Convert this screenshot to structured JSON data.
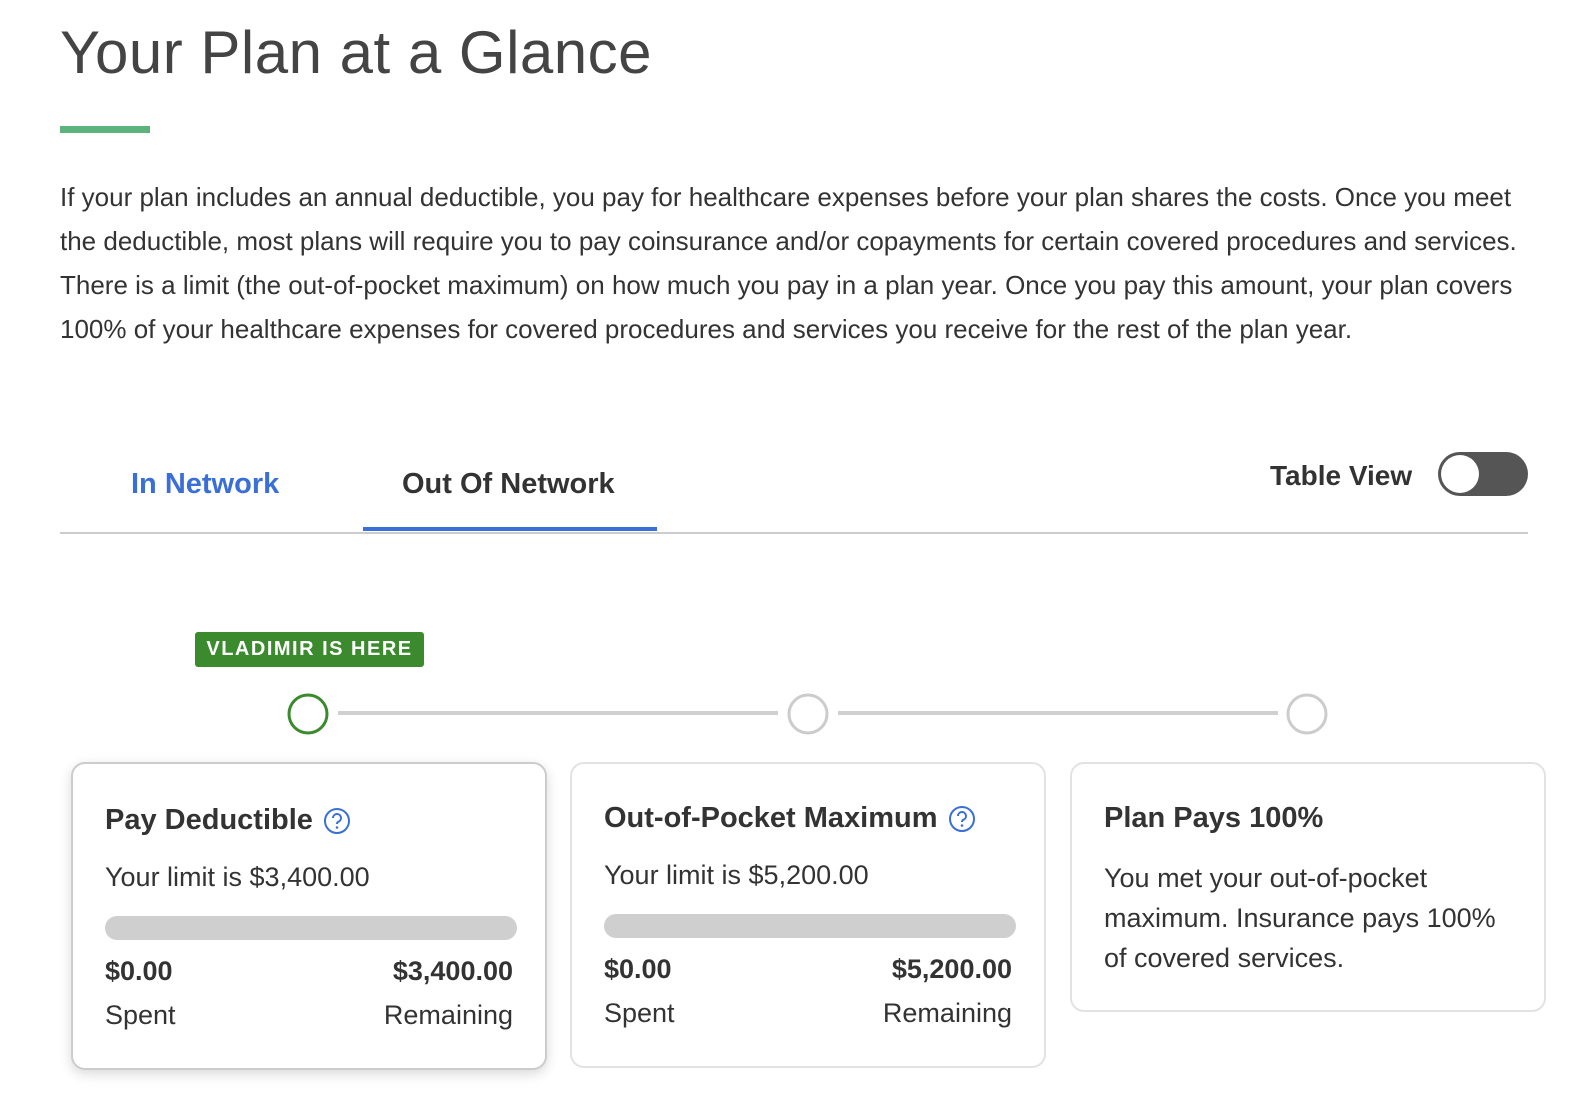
{
  "header": {
    "title": "Your Plan at a Glance",
    "description": "If your plan includes an annual deductible, you pay for healthcare expenses before your plan shares the costs. Once you meet the deductible, most plans will require you to pay coinsurance and/or copayments for certain covered procedures and services. There is a limit (the out-of-pocket maximum) on how much you pay in a plan year. Once you pay this amount, your plan covers 100% of your healthcare expenses for covered procedures and services you receive for the rest of the plan year."
  },
  "tabs": [
    {
      "label": "In Network"
    },
    {
      "label": "Out Of Network"
    }
  ],
  "table_view": {
    "label": "Table View"
  },
  "status_badge": "VLADIMIR IS HERE",
  "cards": [
    {
      "title": "Pay Deductible",
      "limit": "Your limit is $3,400.00",
      "spent_amount": "$0.00",
      "spent_label": "Spent",
      "remaining_amount": "$3,400.00",
      "remaining_label": "Remaining"
    },
    {
      "title": "Out-of-Pocket Maximum",
      "limit": "Your limit is $5,200.00",
      "spent_amount": "$0.00",
      "spent_label": "Spent",
      "remaining_amount": "$5,200.00",
      "remaining_label": "Remaining"
    },
    {
      "title": "Plan Pays 100%",
      "text": "You met your out-of-pocket maximum. Insurance pays 100% of covered services."
    }
  ]
}
